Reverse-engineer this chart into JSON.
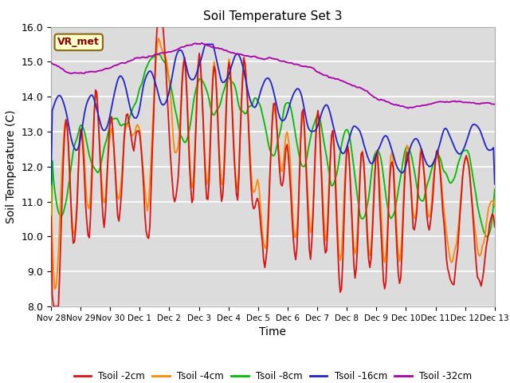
{
  "title": "Soil Temperature Set 3",
  "xlabel": "Time",
  "ylabel": "Soil Temperature (C)",
  "ylim": [
    8.0,
    16.0
  ],
  "yticks": [
    8.0,
    9.0,
    10.0,
    11.0,
    12.0,
    13.0,
    14.0,
    15.0,
    16.0
  ],
  "bg_color": "#dcdcdc",
  "grid_color": "#ffffff",
  "series_colors": [
    "#dd1111",
    "#ff8800",
    "#00bb00",
    "#2222cc",
    "#aa00aa"
  ],
  "series_labels": [
    "Tsoil -2cm",
    "Tsoil -4cm",
    "Tsoil -8cm",
    "Tsoil -16cm",
    "Tsoil -32cm"
  ],
  "xtick_labels": [
    "Nov 28",
    "Nov 29",
    "Nov 30",
    "Dec 1",
    "Dec 2",
    "Dec 3",
    "Dec 4",
    "Dec 5",
    "Dec 6",
    "Dec 7",
    "Dec 8",
    "Dec 9",
    "Dec 10",
    "Dec 11",
    "Dec 12",
    "Dec 13"
  ],
  "vr_met_label": "VR_met"
}
